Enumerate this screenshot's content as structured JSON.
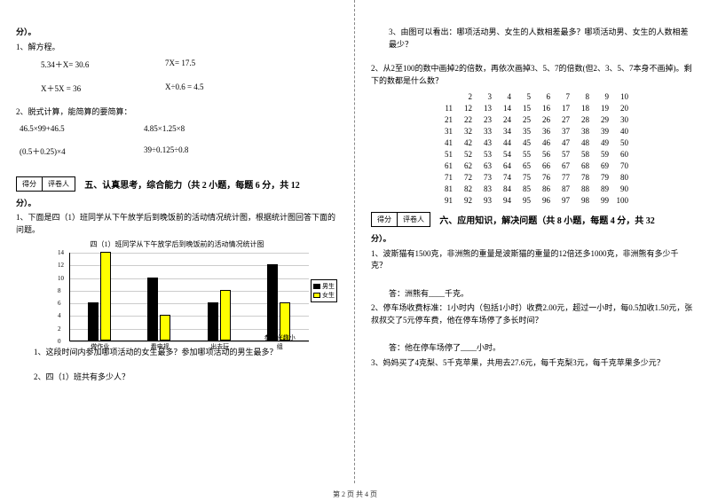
{
  "left": {
    "fen_end": "分）。",
    "q1_title": "1、解方程。",
    "eq1a": "5.34＋X= 30.6",
    "eq1b": "7X= 17.5",
    "eq2a": "X＋5X = 36",
    "eq2b": "X÷0.6 = 4.5",
    "q2_title": "2、脱式计算，能简算的要简算：",
    "eq3a": "46.5×99+46.5",
    "eq3b": "4.85×1.25×8",
    "eq4a": "(0.5＋0.25)×4",
    "eq4b": "39÷0.125÷0.8",
    "score_label1": "得分",
    "score_label2": "评卷人",
    "section5": "五、认真思考，综合能力（共 2 小题，每题 6 分，共 12",
    "fen_end2": "分）。",
    "q5_1": "1、下面是四（1）班同学从下午放学后到晚饭前的活动情况统计图，根据统计图回答下面的问题。",
    "chart_title": "四（1）班同学从下午放学后到晚饭前的活动情况统计图",
    "chart": {
      "y_ticks": [
        0,
        2,
        4,
        6,
        8,
        10,
        12,
        14
      ],
      "y_max": 14,
      "categories": [
        "做作业",
        "看电视",
        "出去玩",
        "参加兴趣小组"
      ],
      "boys": [
        6,
        10,
        6,
        12
      ],
      "girls": [
        14,
        4,
        8,
        6
      ],
      "boy_color": "#000000",
      "girl_color": "#ffff00",
      "legend_boy": "男生",
      "legend_girl": "女生"
    },
    "sub1": "1、这段时间内参加哪项活动的女生最多？参加哪项活动的男生最多？",
    "sub2": "2、四（1）班共有多少人？"
  },
  "right": {
    "sub3": "3、由图可以看出：哪项活动男、女生的人数相差最多？哪项活动男、女生的人数相差最少？",
    "q2": "2、从2至100的数中画掉2的倍数，再依次画掉3、5、7的倍数(但2、3、5、7本身不画掉)。剩下的数都是什么数？",
    "grid": [
      [
        "2",
        "3",
        "4",
        "5",
        "6",
        "7",
        "8",
        "9",
        "10"
      ],
      [
        "11",
        "12",
        "13",
        "14",
        "15",
        "16",
        "17",
        "18",
        "19",
        "20"
      ],
      [
        "21",
        "22",
        "23",
        "24",
        "25",
        "26",
        "27",
        "28",
        "29",
        "30"
      ],
      [
        "31",
        "32",
        "33",
        "34",
        "35",
        "36",
        "37",
        "38",
        "39",
        "40"
      ],
      [
        "41",
        "42",
        "43",
        "44",
        "45",
        "46",
        "47",
        "48",
        "49",
        "50"
      ],
      [
        "51",
        "52",
        "53",
        "54",
        "55",
        "56",
        "57",
        "58",
        "59",
        "60"
      ],
      [
        "61",
        "62",
        "63",
        "64",
        "65",
        "66",
        "67",
        "68",
        "69",
        "70"
      ],
      [
        "71",
        "72",
        "73",
        "74",
        "75",
        "76",
        "77",
        "78",
        "79",
        "80"
      ],
      [
        "81",
        "82",
        "83",
        "84",
        "85",
        "86",
        "87",
        "88",
        "89",
        "90"
      ],
      [
        "91",
        "92",
        "93",
        "94",
        "95",
        "96",
        "97",
        "98",
        "99",
        "100"
      ]
    ],
    "score_label1": "得分",
    "score_label2": "评卷人",
    "section6": "六、应用知识，解决问题（共 8 小题，每题 4 分，共 32",
    "fen_end": "分）。",
    "q6_1": "1、波斯猫有1500克，非洲熊的重量是波斯猫的重量的12倍还多1000克，非洲熊有多少千克？",
    "ans1": "答：洲熊有____千克。",
    "q6_2": "2、停车场收费标准：1小时内（包括1小时）收费2.00元，超过一小时，每0.5加收1.50元，张叔叔交了5元停车费，他在停车场停了多长时间？",
    "ans2": "答：他在停车场停了____小时。",
    "q6_3": "3、妈妈买了4克梨、5千克苹果，共用去27.6元，每千克梨3元，每千克苹果多少元？"
  },
  "footer": "第 2 页 共 4 页"
}
